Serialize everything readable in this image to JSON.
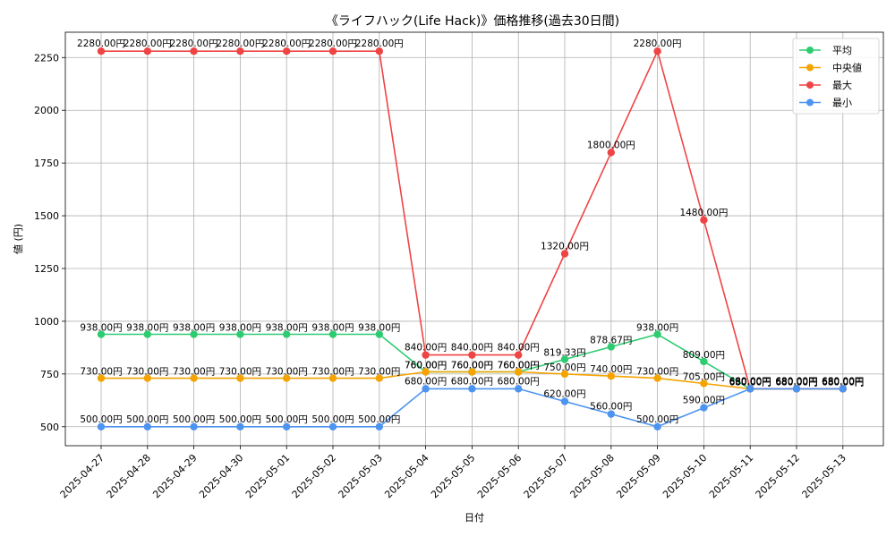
{
  "chart_data": {
    "type": "line",
    "title": "《ライフハック(Life Hack)》価格推移(過去30日間)",
    "xlabel": "日付",
    "ylabel": "値 (円)",
    "categories": [
      "2025-04-27",
      "2025-04-28",
      "2025-04-29",
      "2025-04-30",
      "2025-05-01",
      "2025-05-02",
      "2025-05-03",
      "2025-05-04",
      "2025-05-05",
      "2025-05-06",
      "2025-05-07",
      "2025-05-08",
      "2025-05-09",
      "2025-05-10",
      "2025-05-11",
      "2025-05-12",
      "2025-05-13"
    ],
    "ylim": [
      410,
      2370
    ],
    "yticks": [
      500,
      750,
      1000,
      1250,
      1500,
      1750,
      2000,
      2250
    ],
    "grid": true,
    "legend_position": "top-right",
    "series": [
      {
        "name": "平均",
        "color": "#2ecc71",
        "values": [
          938,
          938,
          938,
          938,
          938,
          938,
          938,
          760,
          760,
          760,
          819.33,
          878.67,
          938,
          809,
          680,
          680,
          680
        ],
        "labels": [
          "938.00円",
          "938.00円",
          "938.00円",
          "938.00円",
          "938.00円",
          "938.00円",
          "938.00円",
          "760.00円",
          "760.00円",
          "760.00円",
          "819.33円",
          "878.67円",
          "938.00円",
          "809.00円",
          "680.00円",
          "680.00円",
          "680.00円"
        ]
      },
      {
        "name": "中央値",
        "color": "#f5a300",
        "values": [
          730,
          730,
          730,
          730,
          730,
          730,
          730,
          760,
          760,
          760,
          750,
          740,
          730,
          705,
          680,
          680,
          680
        ],
        "labels": [
          "730.00円",
          "730.00円",
          "730.00円",
          "730.00円",
          "730.00円",
          "730.00円",
          "730.00円",
          "760.00円",
          "760.00円",
          "760.00円",
          "750.00円",
          "740.00円",
          "730.00円",
          "705.00円",
          "680.00円",
          "680.00円",
          "680.00円"
        ]
      },
      {
        "name": "最大",
        "color": "#ef4444",
        "values": [
          2280,
          2280,
          2280,
          2280,
          2280,
          2280,
          2280,
          840,
          840,
          840,
          1320,
          1800,
          2280,
          1480,
          680,
          680,
          680
        ],
        "labels": [
          "2280.00円",
          "2280.00円",
          "2280.00円",
          "2280.00円",
          "2280.00円",
          "2280.00円",
          "2280.00円",
          "840.00円",
          "840.00円",
          "840.00円",
          "1320.00円",
          "1800.00円",
          "2280.00円",
          "1480.00円",
          "680.00円",
          "680.00円",
          "680.00円"
        ]
      },
      {
        "name": "最小",
        "color": "#4d94f0",
        "values": [
          500,
          500,
          500,
          500,
          500,
          500,
          500,
          680,
          680,
          680,
          620,
          560,
          500,
          590,
          680,
          680,
          680
        ],
        "labels": [
          "500.00円",
          "500.00円",
          "500.00円",
          "500.00円",
          "500.00円",
          "500.00円",
          "500.00円",
          "680.00円",
          "680.00円",
          "680.00円",
          "620.00円",
          "560.00円",
          "500.00円",
          "590.00円",
          "680.00円",
          "680.00円",
          "680.00円"
        ]
      }
    ]
  }
}
